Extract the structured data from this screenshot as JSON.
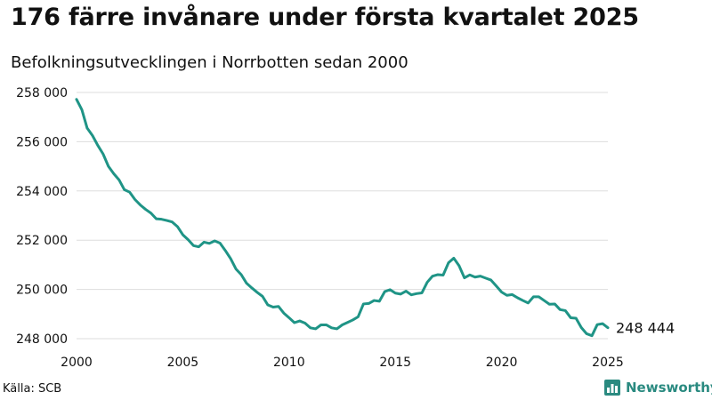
{
  "title": "176 färre invånare under första kvartalet 2025",
  "subtitle": "Befolkningsutvecklingen i Norrbotten sedan 2000",
  "source": "Källa: SCB",
  "brand": {
    "name": "Newsworthy",
    "icon": "bar-chart-logo-icon",
    "color": "#2a8a80"
  },
  "chart_data": {
    "type": "line",
    "title": "176 färre invånare under första kvartalet 2025",
    "subtitle": "Befolkningsutvecklingen i Norrbotten sedan 2000",
    "xlabel": "",
    "ylabel": "",
    "xlim": [
      2000,
      2025
    ],
    "ylim": [
      248000,
      258000
    ],
    "grid": true,
    "legend": "none",
    "line_color": "#1f9486",
    "x_ticks": [
      2000,
      2005,
      2010,
      2015,
      2020,
      2025
    ],
    "x_tick_labels": [
      "2000",
      "2005",
      "2010",
      "2015",
      "2020",
      "2025"
    ],
    "y_ticks": [
      248000,
      250000,
      252000,
      254000,
      256000,
      258000
    ],
    "y_tick_labels": [
      "248 000",
      "250 000",
      "252 000",
      "254 000",
      "256 000",
      "258 000"
    ],
    "end_label": "248 444",
    "series": [
      {
        "x": [
          2000.0,
          2000.25,
          2000.5,
          2000.75,
          2001.0,
          2001.25,
          2001.5,
          2001.75,
          2002.0,
          2002.25,
          2002.5,
          2002.75,
          2003.0,
          2003.25,
          2003.5,
          2003.75,
          2004.0,
          2004.25,
          2004.5,
          2004.75,
          2005.0,
          2005.25,
          2005.5,
          2005.75,
          2006.0,
          2006.25,
          2006.5,
          2006.75,
          2007.0,
          2007.25,
          2007.5,
          2007.75,
          2008.0,
          2008.25,
          2008.5,
          2008.75,
          2009.0,
          2009.25,
          2009.5,
          2009.75,
          2010.0,
          2010.25,
          2010.5,
          2010.75,
          2011.0,
          2011.25,
          2011.5,
          2011.75,
          2012.0,
          2012.25,
          2012.5,
          2012.75,
          2013.0,
          2013.25,
          2013.5,
          2013.75,
          2014.0,
          2014.25,
          2014.5,
          2014.75,
          2015.0,
          2015.25,
          2015.5,
          2015.75,
          2016.0,
          2016.25,
          2016.5,
          2016.75,
          2017.0,
          2017.25,
          2017.5,
          2017.75,
          2018.0,
          2018.25,
          2018.5,
          2018.75,
          2019.0,
          2019.25,
          2019.5,
          2019.75,
          2020.0,
          2020.25,
          2020.5,
          2020.75,
          2021.0,
          2021.25,
          2021.5,
          2021.75,
          2022.0,
          2022.25,
          2022.5,
          2022.75,
          2023.0,
          2023.25,
          2023.5,
          2023.75,
          2024.0,
          2024.25,
          2024.5,
          2024.75,
          2025.0
        ],
        "values": [
          257720,
          257300,
          256550,
          256250,
          255850,
          255500,
          255000,
          254700,
          254450,
          254050,
          253950,
          253650,
          253430,
          253250,
          253100,
          252870,
          252850,
          252800,
          252740,
          252550,
          252220,
          252020,
          251780,
          251730,
          251920,
          251870,
          251970,
          251880,
          251580,
          251250,
          250830,
          250600,
          250250,
          250060,
          249880,
          249720,
          249370,
          249280,
          249310,
          249040,
          248850,
          248650,
          248720,
          248630,
          248440,
          248400,
          248560,
          248560,
          248440,
          248400,
          248560,
          248660,
          248760,
          248890,
          249410,
          249430,
          249550,
          249520,
          249910,
          249990,
          249850,
          249810,
          249930,
          249780,
          249830,
          249860,
          250290,
          250540,
          250600,
          250580,
          251080,
          251270,
          250960,
          250470,
          250590,
          250500,
          250540,
          250460,
          250380,
          250140,
          249890,
          249760,
          249790,
          249660,
          249550,
          249450,
          249700,
          249700,
          249550,
          249400,
          249410,
          249180,
          249140,
          248850,
          248830,
          248450,
          248200,
          248120,
          248570,
          248610,
          248444
        ]
      }
    ]
  }
}
